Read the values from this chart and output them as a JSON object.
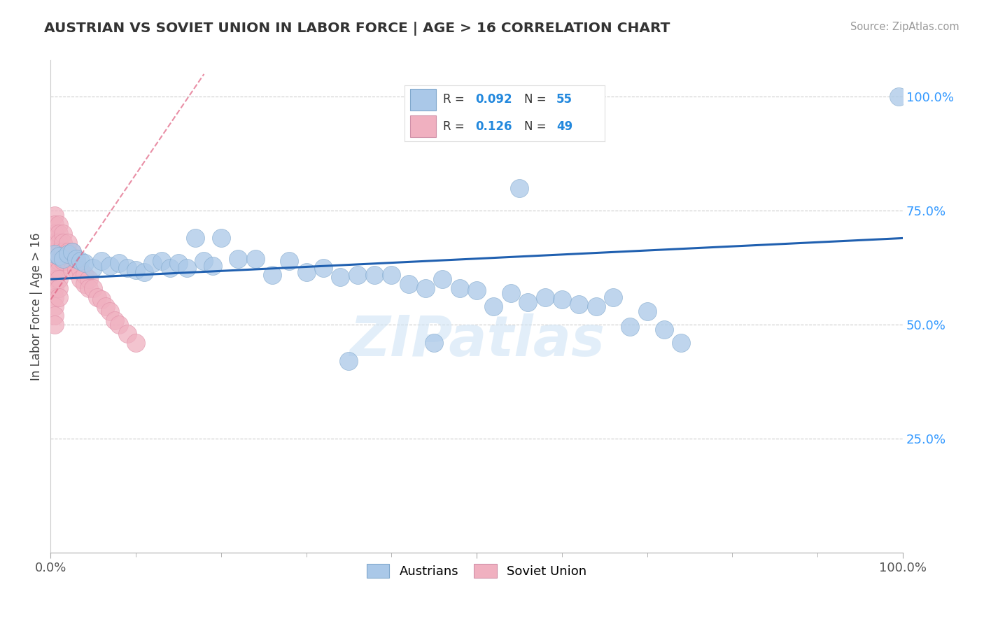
{
  "title": "AUSTRIAN VS SOVIET UNION IN LABOR FORCE | AGE > 16 CORRELATION CHART",
  "source_text": "Source: ZipAtlas.com",
  "ylabel": "In Labor Force | Age > 16",
  "xlim": [
    0.0,
    1.0
  ],
  "ylim": [
    0.0,
    1.08
  ],
  "r_austrians": 0.092,
  "n_austrians": 55,
  "r_soviet": 0.126,
  "n_soviet": 49,
  "watermark": "ZIPatlas",
  "austrians_color": "#aac8e8",
  "soviet_color": "#f0b0c0",
  "trendline_austrians_color": "#2060b0",
  "trendline_soviet_color": "#e06080",
  "background_color": "#ffffff",
  "grid_color": "#cccccc",
  "austrians_x": [
    0.005,
    0.01,
    0.015,
    0.02,
    0.025,
    0.03,
    0.035,
    0.04,
    0.05,
    0.06,
    0.07,
    0.08,
    0.09,
    0.1,
    0.11,
    0.12,
    0.13,
    0.14,
    0.15,
    0.16,
    0.17,
    0.18,
    0.19,
    0.2,
    0.22,
    0.24,
    0.26,
    0.28,
    0.3,
    0.32,
    0.34,
    0.36,
    0.38,
    0.4,
    0.42,
    0.44,
    0.46,
    0.48,
    0.5,
    0.52,
    0.54,
    0.56,
    0.58,
    0.6,
    0.62,
    0.64,
    0.66,
    0.68,
    0.7,
    0.72,
    0.74,
    0.35,
    0.45,
    0.995,
    0.55
  ],
  "austrians_y": [
    0.655,
    0.65,
    0.645,
    0.655,
    0.66,
    0.645,
    0.64,
    0.635,
    0.625,
    0.64,
    0.63,
    0.635,
    0.625,
    0.62,
    0.615,
    0.635,
    0.64,
    0.625,
    0.635,
    0.625,
    0.69,
    0.64,
    0.63,
    0.69,
    0.645,
    0.645,
    0.61,
    0.64,
    0.615,
    0.625,
    0.605,
    0.61,
    0.61,
    0.61,
    0.59,
    0.58,
    0.6,
    0.58,
    0.575,
    0.54,
    0.57,
    0.55,
    0.56,
    0.555,
    0.545,
    0.54,
    0.56,
    0.495,
    0.53,
    0.49,
    0.46,
    0.42,
    0.46,
    1.0,
    0.8
  ],
  "soviet_x": [
    0.005,
    0.005,
    0.005,
    0.005,
    0.005,
    0.005,
    0.005,
    0.005,
    0.005,
    0.005,
    0.005,
    0.005,
    0.005,
    0.01,
    0.01,
    0.01,
    0.01,
    0.01,
    0.01,
    0.01,
    0.01,
    0.01,
    0.015,
    0.015,
    0.015,
    0.015,
    0.02,
    0.02,
    0.02,
    0.025,
    0.025,
    0.025,
    0.03,
    0.03,
    0.035,
    0.035,
    0.04,
    0.04,
    0.045,
    0.045,
    0.05,
    0.055,
    0.06,
    0.065,
    0.07,
    0.075,
    0.08,
    0.09,
    0.1
  ],
  "soviet_y": [
    0.74,
    0.72,
    0.7,
    0.68,
    0.66,
    0.64,
    0.62,
    0.6,
    0.58,
    0.56,
    0.54,
    0.52,
    0.5,
    0.72,
    0.7,
    0.68,
    0.66,
    0.64,
    0.62,
    0.6,
    0.58,
    0.56,
    0.7,
    0.68,
    0.66,
    0.64,
    0.68,
    0.66,
    0.64,
    0.66,
    0.64,
    0.62,
    0.64,
    0.62,
    0.62,
    0.6,
    0.61,
    0.59,
    0.6,
    0.58,
    0.58,
    0.56,
    0.555,
    0.54,
    0.53,
    0.51,
    0.5,
    0.48,
    0.46
  ],
  "aust_trend_x": [
    0.0,
    1.0
  ],
  "aust_trend_y": [
    0.6,
    0.69
  ],
  "sov_trend_x": [
    0.0,
    0.18
  ],
  "sov_trend_y": [
    0.555,
    1.05
  ]
}
